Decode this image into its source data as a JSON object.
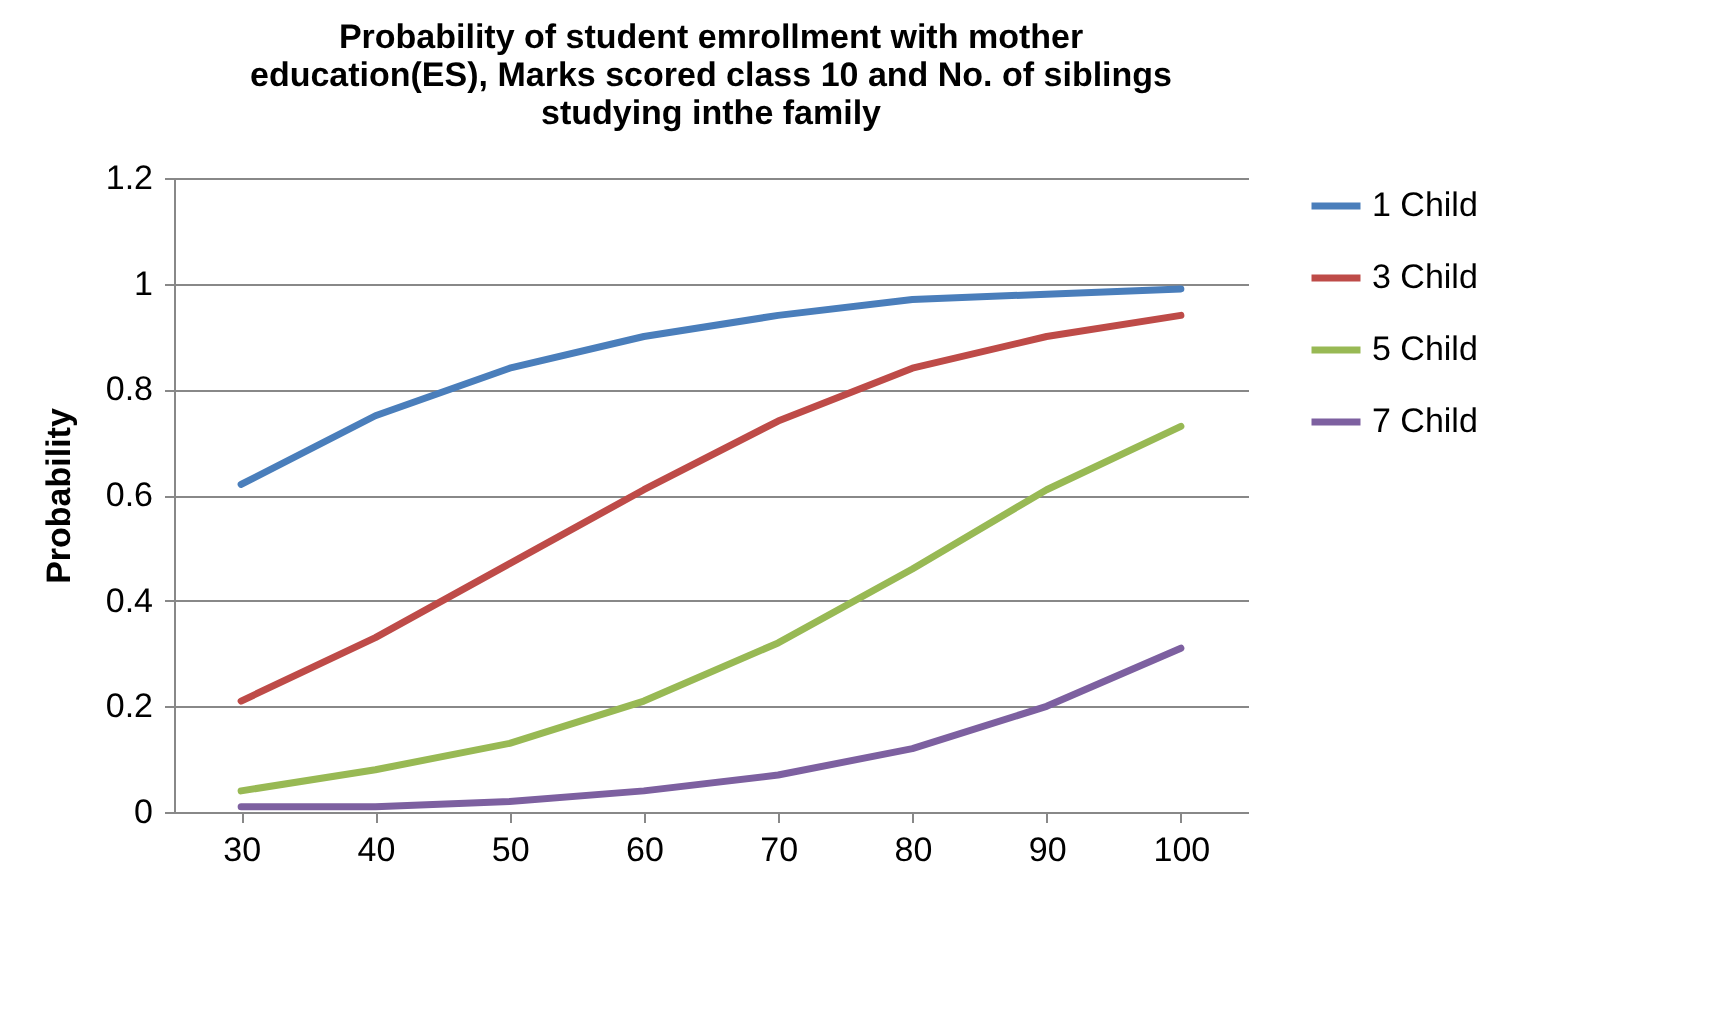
{
  "chart_data": {
    "type": "line",
    "title": "Probability of student emrollment with mother\neducation(ES), Marks scored class 10 and No. of siblings\nstudying inthe family",
    "ylabel": "Probability",
    "categories": [
      "30",
      "40",
      "50",
      "60",
      "70",
      "80",
      "90",
      "100"
    ],
    "series": [
      {
        "name": "1 Child",
        "color": "#4a7ebb",
        "values": [
          0.62,
          0.75,
          0.84,
          0.9,
          0.94,
          0.97,
          0.98,
          0.99
        ]
      },
      {
        "name": "3 Child",
        "color": "#be4b48",
        "values": [
          0.21,
          0.33,
          0.47,
          0.61,
          0.74,
          0.84,
          0.9,
          0.94
        ]
      },
      {
        "name": "5 Child",
        "color": "#98b954",
        "values": [
          0.04,
          0.08,
          0.13,
          0.21,
          0.32,
          0.46,
          0.61,
          0.73
        ]
      },
      {
        "name": "7 Child",
        "color": "#7d60a0",
        "values": [
          0.01,
          0.01,
          0.02,
          0.04,
          0.07,
          0.12,
          0.2,
          0.31
        ]
      }
    ],
    "ylim": [
      0,
      1.2
    ],
    "yticks": [
      0,
      0.2,
      0.4,
      0.6,
      0.8,
      1,
      1.2
    ],
    "grid": "y",
    "legend": "right",
    "marker": "none",
    "line_style": "solid"
  }
}
